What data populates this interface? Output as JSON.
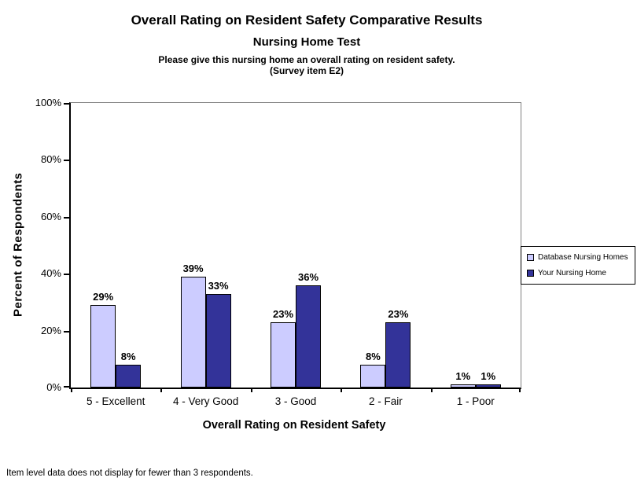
{
  "titles": {
    "main": "Overall Rating on Resident Safety Comparative Results",
    "subtitle": "Nursing Home Test",
    "question_line1": "Please give this nursing home an overall rating on resident safety.",
    "question_line2": "(Survey item E2)"
  },
  "footer": {
    "note": "Item level data does not display for fewer than 3 respondents."
  },
  "chart_data": {
    "type": "bar",
    "title": "Overall Rating on Resident Safety Comparative Results",
    "subtitle": "Nursing Home Test",
    "question": "Please give this nursing home an overall rating on resident safety. (Survey item E2)",
    "categories": [
      "5 - Excellent",
      "4 - Very Good",
      "3 - Good",
      "2 - Fair",
      "1 - Poor"
    ],
    "series": [
      {
        "name": "Database Nursing Homes",
        "color": "#CCCCFF",
        "values": [
          29,
          39,
          23,
          8,
          1
        ]
      },
      {
        "name": "Your Nursing Home",
        "color": "#333399",
        "values": [
          8,
          33,
          36,
          23,
          1
        ]
      }
    ],
    "data_label_suffix": "%",
    "xlabel": "Overall Rating on Resident Safety",
    "ylabel": "Percent of Respondents",
    "ylim": [
      0,
      100
    ],
    "ytick_step": 20,
    "ytick_labels": [
      "0%",
      "20%",
      "40%",
      "60%",
      "80%",
      "100%"
    ],
    "grid": false,
    "legend_position": "right",
    "axis_color": "#000000",
    "plot_border_color": "#808080",
    "bar_border_color": "#000000"
  }
}
